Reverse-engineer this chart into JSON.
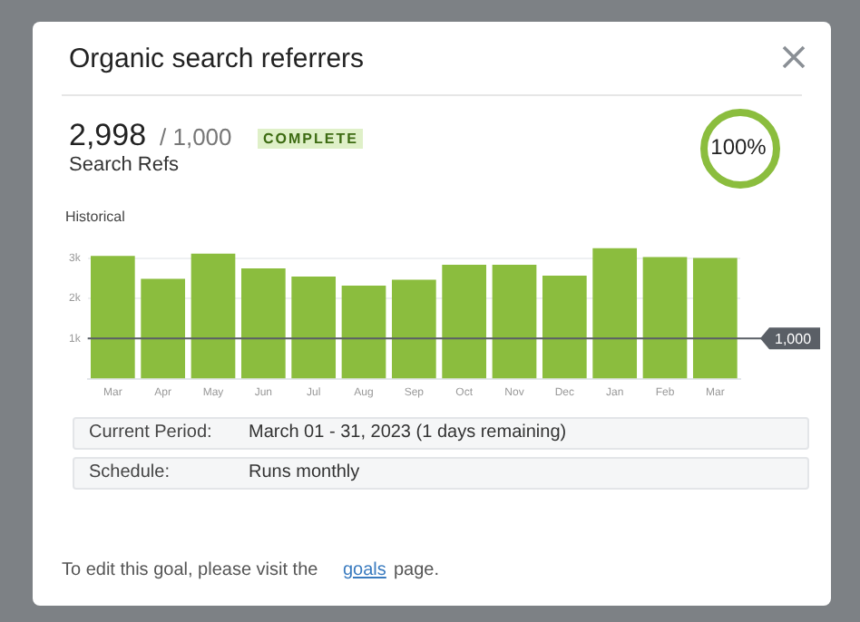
{
  "chart_data": {
    "type": "bar",
    "title": "Organic search referrers",
    "categories": [
      "Mar",
      "Apr",
      "May",
      "Jun",
      "Jul",
      "Aug",
      "Sep",
      "Oct",
      "Nov",
      "Dec",
      "Jan",
      "Feb",
      "Mar"
    ],
    "values": [
      3050,
      2480,
      3110,
      2740,
      2540,
      2310,
      2460,
      2830,
      2830,
      2560,
      3240,
      3020,
      3000
    ],
    "color": "#8bbd3e",
    "ylim": [
      0,
      3300
    ],
    "yticks": [
      {
        "value": 1000,
        "label": "1k"
      },
      {
        "value": 2000,
        "label": "2k"
      },
      {
        "value": 3000,
        "label": "3k"
      }
    ],
    "grid": "y",
    "ref_lines": [
      {
        "axis": "y",
        "value": 1000,
        "label": "1,000",
        "color": "#5a5f66"
      }
    ],
    "annotations": [
      "2,998",
      "/ 1,000",
      "COMPLETE",
      "Search Refs",
      "100%",
      "Historical",
      "Current Period:",
      "March 01 - 31, 2023 (1 days remaining)",
      "Schedule:",
      "Runs monthly",
      "To edit this goal, please visit the",
      "goals",
      "page."
    ]
  }
}
